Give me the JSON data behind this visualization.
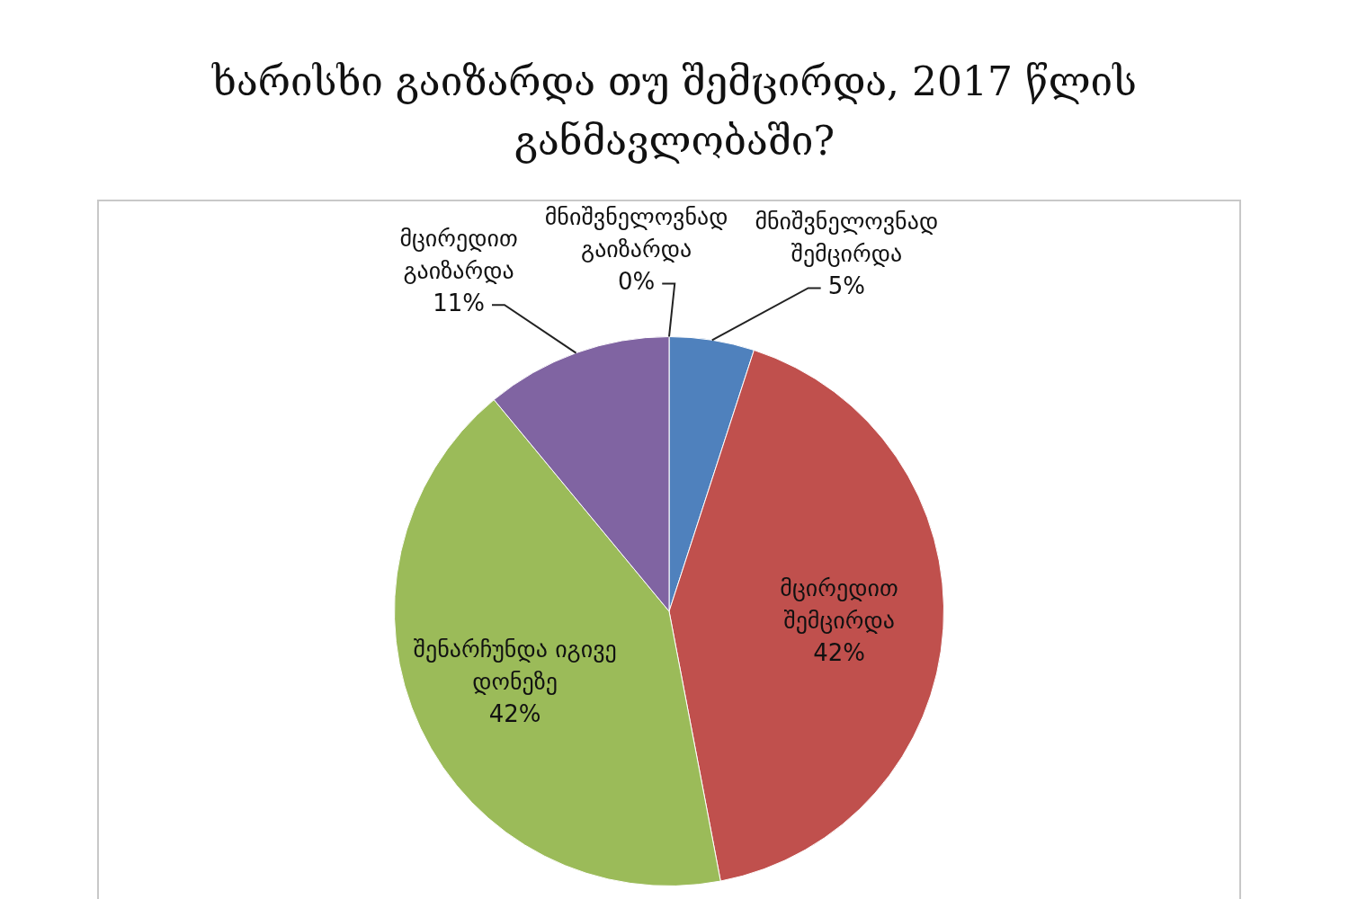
{
  "chart_data": {
    "type": "pie",
    "title": "ხარისხი გაიზარდა თუ შემცირდა, 2017 წლის განმავლობაში?",
    "categories": [
      "მნიშვნელოვნად შემცირდა",
      "მცირედით შემცირდა",
      "შენარჩუნდა იგივე დონეზე",
      "მცირედით გაიზარდა",
      "მნიშვნელოვნად გაიზარდა"
    ],
    "values": [
      5,
      42,
      42,
      11,
      0
    ],
    "colors": [
      "#4f81bd",
      "#c0504d",
      "#9bbb59",
      "#8064a2",
      "#4bacc6"
    ],
    "value_labels": [
      "5%",
      "42%",
      "42%",
      "11%",
      "0%"
    ]
  }
}
